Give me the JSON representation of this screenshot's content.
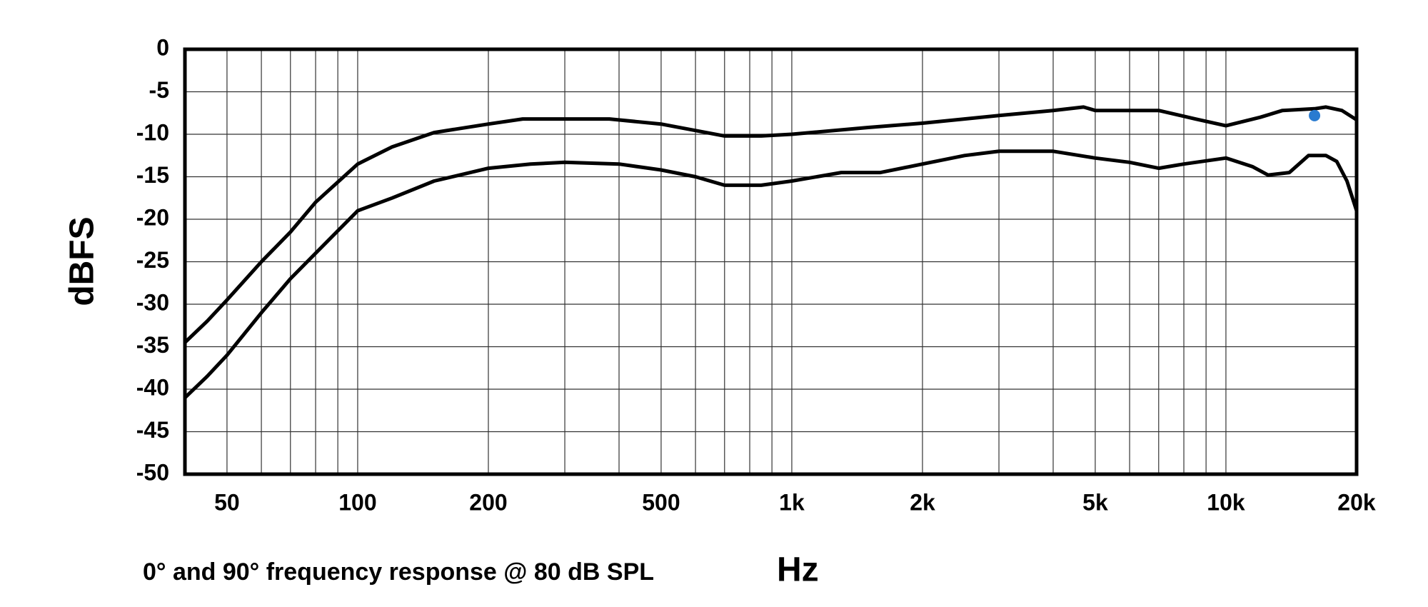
{
  "chart_data": {
    "type": "line",
    "y_label": "dBFS",
    "x_label": "Hz",
    "caption": "0° and 90° frequency response @ 80 dB SPL",
    "xlog": true,
    "grid": true,
    "xlim": [
      40,
      20000
    ],
    "ylim": [
      -50,
      0
    ],
    "xticks": [
      50,
      100,
      200,
      500,
      {
        "value": 1000,
        "label": "1k"
      },
      {
        "value": 2000,
        "label": "2k"
      },
      {
        "value": 5000,
        "label": "5k"
      },
      {
        "value": 10000,
        "label": "10k"
      },
      {
        "value": 20000,
        "label": "20k"
      }
    ],
    "xminor": [
      40,
      60,
      70,
      80,
      90,
      300,
      400,
      600,
      700,
      800,
      900,
      3000,
      4000,
      6000,
      7000,
      8000,
      9000
    ],
    "yticks": [
      0,
      -5,
      -10,
      -15,
      -20,
      -25,
      -30,
      -35,
      -40,
      -45,
      -50
    ],
    "series": [
      {
        "color": "#000000",
        "x": [
          40,
          45,
          50,
          60,
          70,
          80,
          100,
          120,
          150,
          200,
          240,
          300,
          380,
          500,
          700,
          850,
          1000,
          1500,
          2000,
          3000,
          4000,
          4700,
          5000,
          7000,
          8500,
          10000,
          12000,
          13500,
          16000,
          17000,
          18500,
          20000
        ],
        "values": [
          -34.5,
          -32,
          -29.5,
          -25,
          -21.5,
          -18,
          -13.5,
          -11.5,
          -9.8,
          -8.8,
          -8.2,
          -8.2,
          -8.2,
          -8.8,
          -10.2,
          -10.2,
          -10,
          -9.2,
          -8.7,
          -7.8,
          -7.2,
          -6.8,
          -7.2,
          -7.2,
          -8.2,
          -9,
          -8,
          -7.2,
          -7,
          -6.8,
          -7.2,
          -8.3
        ]
      },
      {
        "color": "#000000",
        "x": [
          40,
          45,
          50,
          60,
          70,
          80,
          100,
          120,
          150,
          200,
          250,
          300,
          400,
          500,
          600,
          700,
          850,
          1000,
          1300,
          1600,
          2000,
          2500,
          3000,
          4000,
          5000,
          6000,
          7000,
          8000,
          10000,
          11500,
          12500,
          14000,
          15500,
          17000,
          18000,
          19000,
          20000
        ],
        "values": [
          -41,
          -38.5,
          -36,
          -31,
          -27,
          -24,
          -19,
          -17.5,
          -15.5,
          -14,
          -13.5,
          -13.3,
          -13.5,
          -14.2,
          -15,
          -16,
          -16,
          -15.5,
          -14.5,
          -14.5,
          -13.5,
          -12.5,
          -12,
          -12,
          -12.8,
          -13.3,
          -14,
          -13.5,
          -12.8,
          -13.8,
          -14.8,
          -14.5,
          -12.5,
          -12.5,
          -13.2,
          -15.5,
          -19
        ]
      }
    ],
    "marker": {
      "x": 16000,
      "y": -7.8,
      "color": "#2a7bd0"
    }
  }
}
